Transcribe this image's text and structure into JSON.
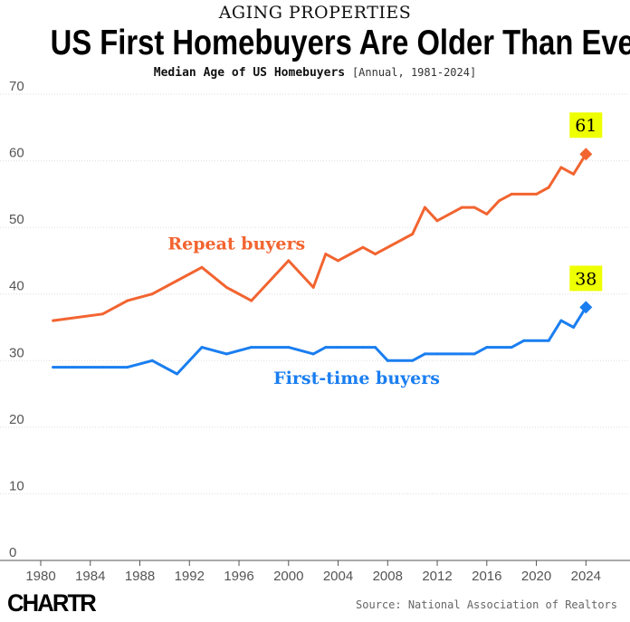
{
  "header": {
    "kicker": "AGING PROPERTIES",
    "title": "US First Homebuyers Are Older Than Ever",
    "subtitle": "Median Age of US Homebuyers",
    "subtitle_note": "[Annual, 1981-2024]"
  },
  "footer": {
    "logo": "CHARTR",
    "source": "Source: National Association of Realtors"
  },
  "chart_data": {
    "type": "line",
    "title": "Median Age of US Homebuyers",
    "xlim": [
      1980,
      2025
    ],
    "ylim": [
      0,
      70
    ],
    "x_ticks": [
      "1980",
      "1984",
      "1988",
      "1992",
      "1996",
      "2000",
      "2004",
      "2008",
      "2012",
      "2016",
      "2020",
      "2024"
    ],
    "y_ticks": [
      "0",
      "10",
      "20",
      "30",
      "40",
      "50",
      "60",
      "70"
    ],
    "grid": true,
    "series": [
      {
        "name": "Repeat buyers",
        "color": "#f26430",
        "end_label": "61",
        "points": [
          [
            1981,
            36
          ],
          [
            1985,
            37
          ],
          [
            1987,
            39
          ],
          [
            1989,
            40
          ],
          [
            1991,
            42
          ],
          [
            1993,
            44
          ],
          [
            1995,
            41
          ],
          [
            1997,
            39
          ],
          [
            2000,
            45
          ],
          [
            2002,
            41
          ],
          [
            2003,
            46
          ],
          [
            2004,
            45
          ],
          [
            2006,
            47
          ],
          [
            2007,
            46
          ],
          [
            2010,
            49
          ],
          [
            2011,
            53
          ],
          [
            2012,
            51
          ],
          [
            2014,
            53
          ],
          [
            2015,
            53
          ],
          [
            2016,
            52
          ],
          [
            2017,
            54
          ],
          [
            2018,
            55
          ],
          [
            2020,
            55
          ],
          [
            2021,
            56
          ],
          [
            2022,
            59
          ],
          [
            2023,
            58
          ],
          [
            2024,
            61
          ]
        ]
      },
      {
        "name": "First-time buyers",
        "color": "#1a7ef0",
        "end_label": "38",
        "points": [
          [
            1981,
            29
          ],
          [
            1985,
            29
          ],
          [
            1987,
            29
          ],
          [
            1989,
            30
          ],
          [
            1991,
            28
          ],
          [
            1993,
            32
          ],
          [
            1995,
            31
          ],
          [
            1997,
            32
          ],
          [
            2000,
            32
          ],
          [
            2002,
            31
          ],
          [
            2003,
            32
          ],
          [
            2004,
            32
          ],
          [
            2006,
            32
          ],
          [
            2007,
            32
          ],
          [
            2008,
            30
          ],
          [
            2010,
            30
          ],
          [
            2011,
            31
          ],
          [
            2012,
            31
          ],
          [
            2014,
            31
          ],
          [
            2015,
            31
          ],
          [
            2016,
            32
          ],
          [
            2018,
            32
          ],
          [
            2019,
            33
          ],
          [
            2021,
            33
          ],
          [
            2022,
            36
          ],
          [
            2023,
            35
          ],
          [
            2024,
            38
          ]
        ]
      }
    ]
  }
}
